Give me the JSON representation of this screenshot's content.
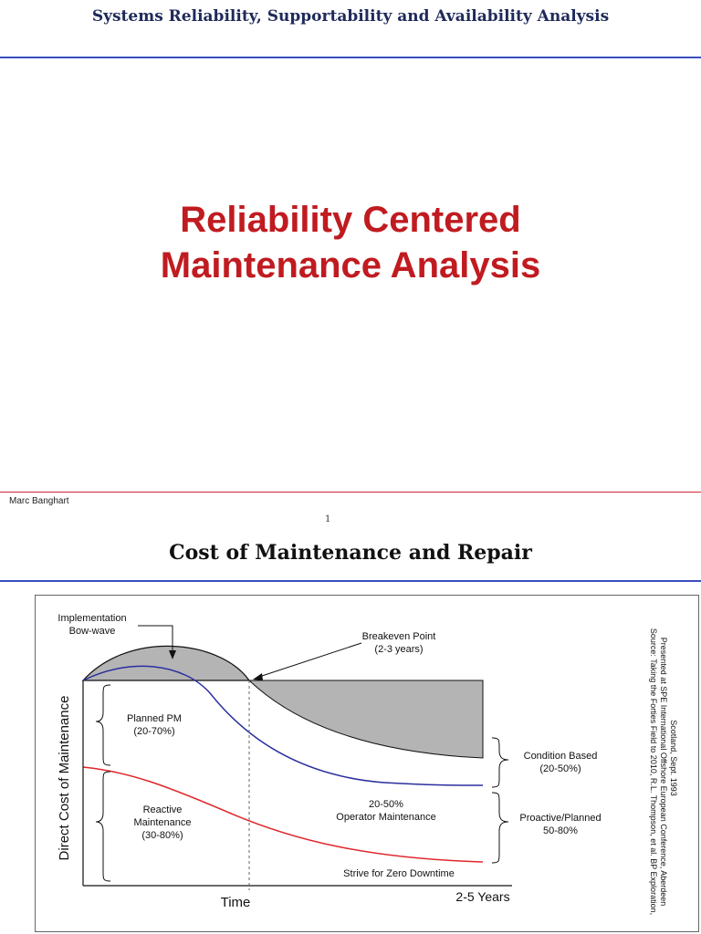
{
  "slide1": {
    "header_title": "Systems Reliability, Supportability and Availability Analysis",
    "main_title_line1": "Reliability Centered",
    "main_title_line2": "Maintenance Analysis",
    "author": "Marc Banghart",
    "page_number": "1",
    "colors": {
      "header_rule": "#3a4fbf",
      "footer_rule": "#d0243b",
      "title": "#c01b20"
    }
  },
  "slide2": {
    "title": "Cost of Maintenance and Repair",
    "diagram": {
      "y_axis_label": "Direct Cost of Maintenance",
      "x_axis_label": "Time",
      "x_end_label": "2-5 Years",
      "implementation_label_1": "Implementation",
      "implementation_label_2": "Bow-wave",
      "breakeven_label_1": "Breakeven Point",
      "breakeven_label_2": "(2-3 years)",
      "planned_pm_1": "Planned PM",
      "planned_pm_2": "(20-70%)",
      "reactive_1": "Reactive",
      "reactive_2": "Maintenance",
      "reactive_3": "(30-80%)",
      "operator_1": "20-50%",
      "operator_2": "Operator Maintenance",
      "zero_downtime": "Strive for Zero Downtime",
      "condition_1": "Condition Based",
      "condition_2": "(20-50%)",
      "proactive_1": "Proactive/Planned",
      "proactive_2": "50-80%",
      "source_1": "Source: Taking the Forties Field to 2010, R.L. Thompson, et al. BP Exploration,",
      "source_2": "Presented at SPE International Offshore European Conference, Aberdeen",
      "source_3": "Scotland, Sept. 1993",
      "colors": {
        "planned_curve": "#2b2f9e",
        "reactive_curve": "#e0262b",
        "shade": "#b4b4b4"
      }
    }
  }
}
